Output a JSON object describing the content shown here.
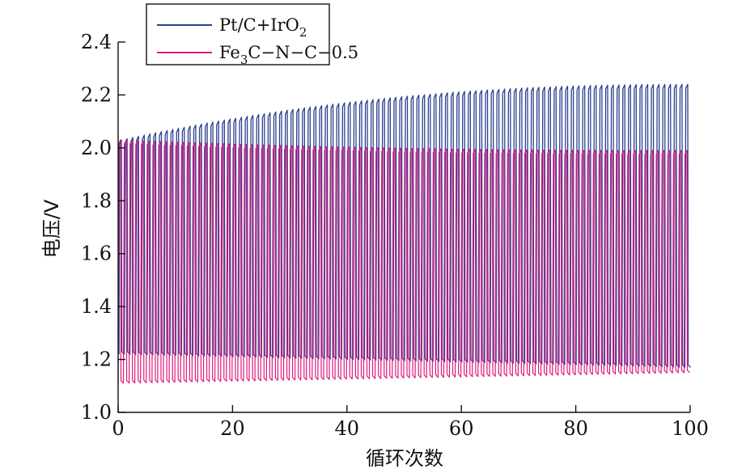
{
  "chart_data": {
    "type": "line",
    "xlabel": "循环次数",
    "ylabel": "电压/V",
    "xlim": [
      0,
      100
    ],
    "ylim": [
      1.0,
      2.4
    ],
    "xticks": [
      "0",
      "20",
      "40",
      "60",
      "80",
      "100"
    ],
    "yticks": [
      "1.0",
      "1.2",
      "1.4",
      "1.6",
      "1.8",
      "2.0",
      "2.2",
      "2.4"
    ],
    "legend_position": "top-left",
    "series": [
      {
        "name": "Pt/C+IrO2",
        "color": "#2b3f8f",
        "pattern": "charge-discharge square wave",
        "charge_voltage_start": 2.03,
        "charge_voltage_end": 2.24,
        "discharge_voltage_start": 1.22,
        "discharge_voltage_end": 1.17,
        "cycles_visible": 100
      },
      {
        "name": "Fe3C-N-C-0.5",
        "color": "#e0197d",
        "pattern": "charge-discharge square wave",
        "charge_voltage_start": 2.03,
        "charge_voltage_end": 1.99,
        "discharge_voltage_start": 1.11,
        "discharge_voltage_end": 1.15,
        "cycles_visible": 100
      }
    ]
  },
  "legend": {
    "items": [
      {
        "text": "Pt/C+IrO",
        "sub": "2",
        "after": ""
      },
      {
        "text": "Fe",
        "sub": "3",
        "after": "C−N−C−0.5"
      }
    ]
  }
}
